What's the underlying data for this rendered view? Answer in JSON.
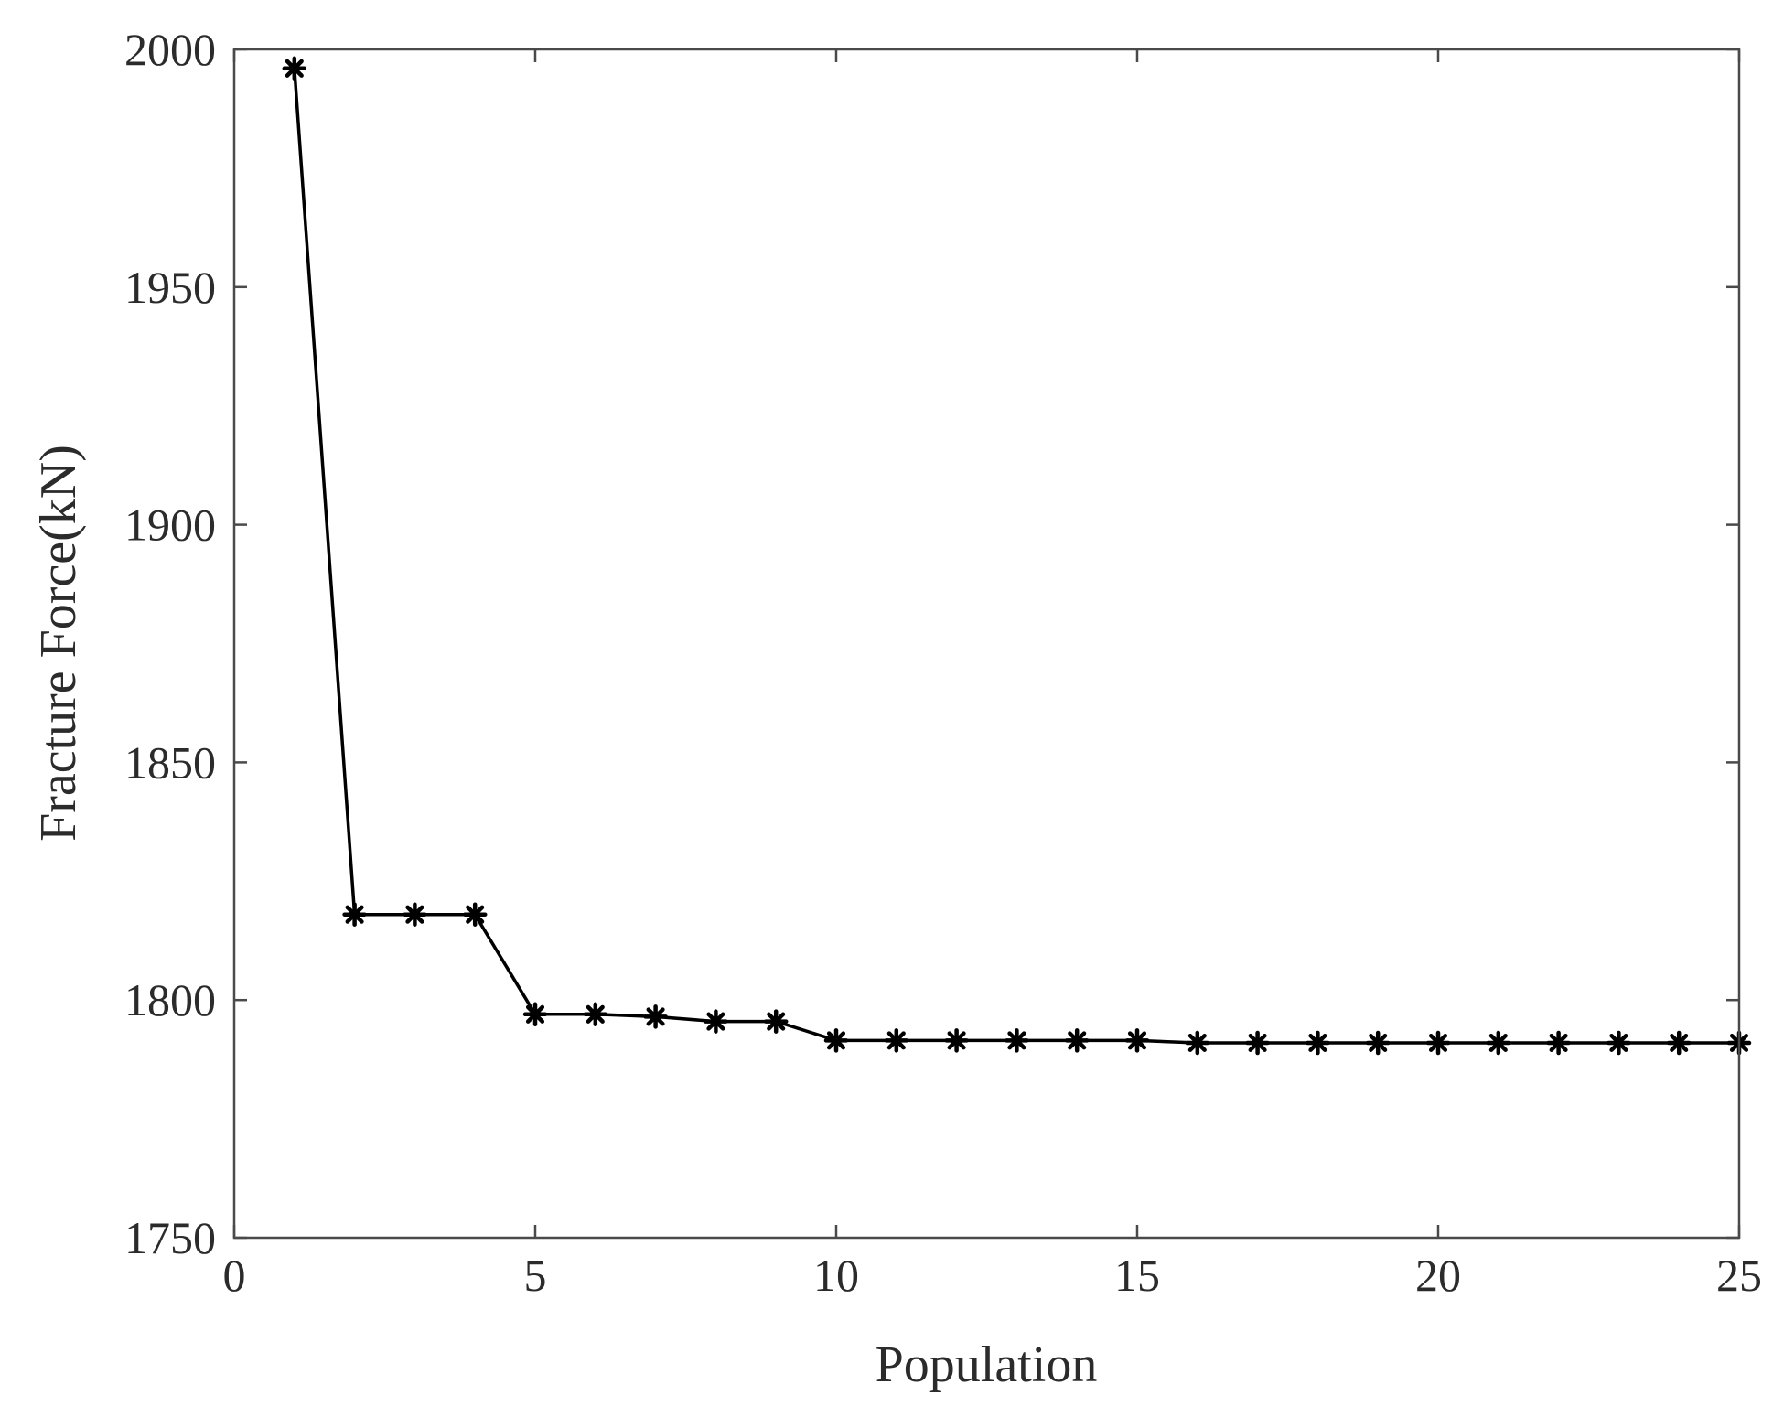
{
  "chart_data": {
    "type": "line",
    "title": "",
    "xlabel": "Population",
    "ylabel": "Fracture Force(kN)",
    "xlim": [
      0,
      25
    ],
    "ylim": [
      1750,
      2000
    ],
    "xticks": [
      0,
      5,
      10,
      15,
      20,
      25
    ],
    "yticks": [
      1750,
      1800,
      1850,
      1900,
      1950,
      2000
    ],
    "grid": false,
    "legend": "none",
    "marker": "asterisk",
    "line_color": "#000000",
    "series": [
      {
        "x": [
          1,
          2,
          3,
          4,
          5,
          6,
          7,
          8,
          9,
          10,
          11,
          12,
          13,
          14,
          15,
          16,
          17,
          18,
          19,
          20,
          21,
          22,
          23,
          24,
          25
        ],
        "y": [
          1996,
          1818,
          1818,
          1818,
          1797,
          1797,
          1796.5,
          1795.5,
          1795.5,
          1791.5,
          1791.5,
          1791.5,
          1791.5,
          1791.5,
          1791.5,
          1791,
          1791,
          1791,
          1791,
          1791,
          1791,
          1791,
          1791,
          1791,
          1791
        ]
      }
    ]
  }
}
